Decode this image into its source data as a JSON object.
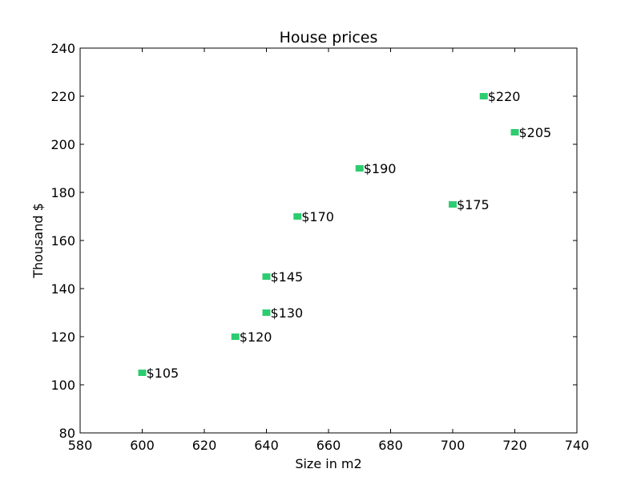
{
  "chart_data": {
    "type": "scatter",
    "title": "House prices",
    "xlabel": "Size in m2",
    "ylabel": "Thousand $",
    "xlim": [
      580,
      740
    ],
    "ylim": [
      80,
      240
    ],
    "xticks": [
      580,
      600,
      620,
      640,
      660,
      680,
      700,
      720,
      740
    ],
    "yticks": [
      80,
      100,
      120,
      140,
      160,
      180,
      200,
      220,
      240
    ],
    "grid": false,
    "marker": "square",
    "marker_color": "#2ecc71",
    "points": [
      {
        "x": 600,
        "y": 105,
        "label": "$105"
      },
      {
        "x": 630,
        "y": 120,
        "label": "$120"
      },
      {
        "x": 640,
        "y": 130,
        "label": "$130"
      },
      {
        "x": 640,
        "y": 145,
        "label": "$145"
      },
      {
        "x": 650,
        "y": 170,
        "label": "$170"
      },
      {
        "x": 670,
        "y": 190,
        "label": "$190"
      },
      {
        "x": 700,
        "y": 175,
        "label": "$175"
      },
      {
        "x": 710,
        "y": 220,
        "label": "$220"
      },
      {
        "x": 720,
        "y": 205,
        "label": "$205"
      }
    ]
  }
}
